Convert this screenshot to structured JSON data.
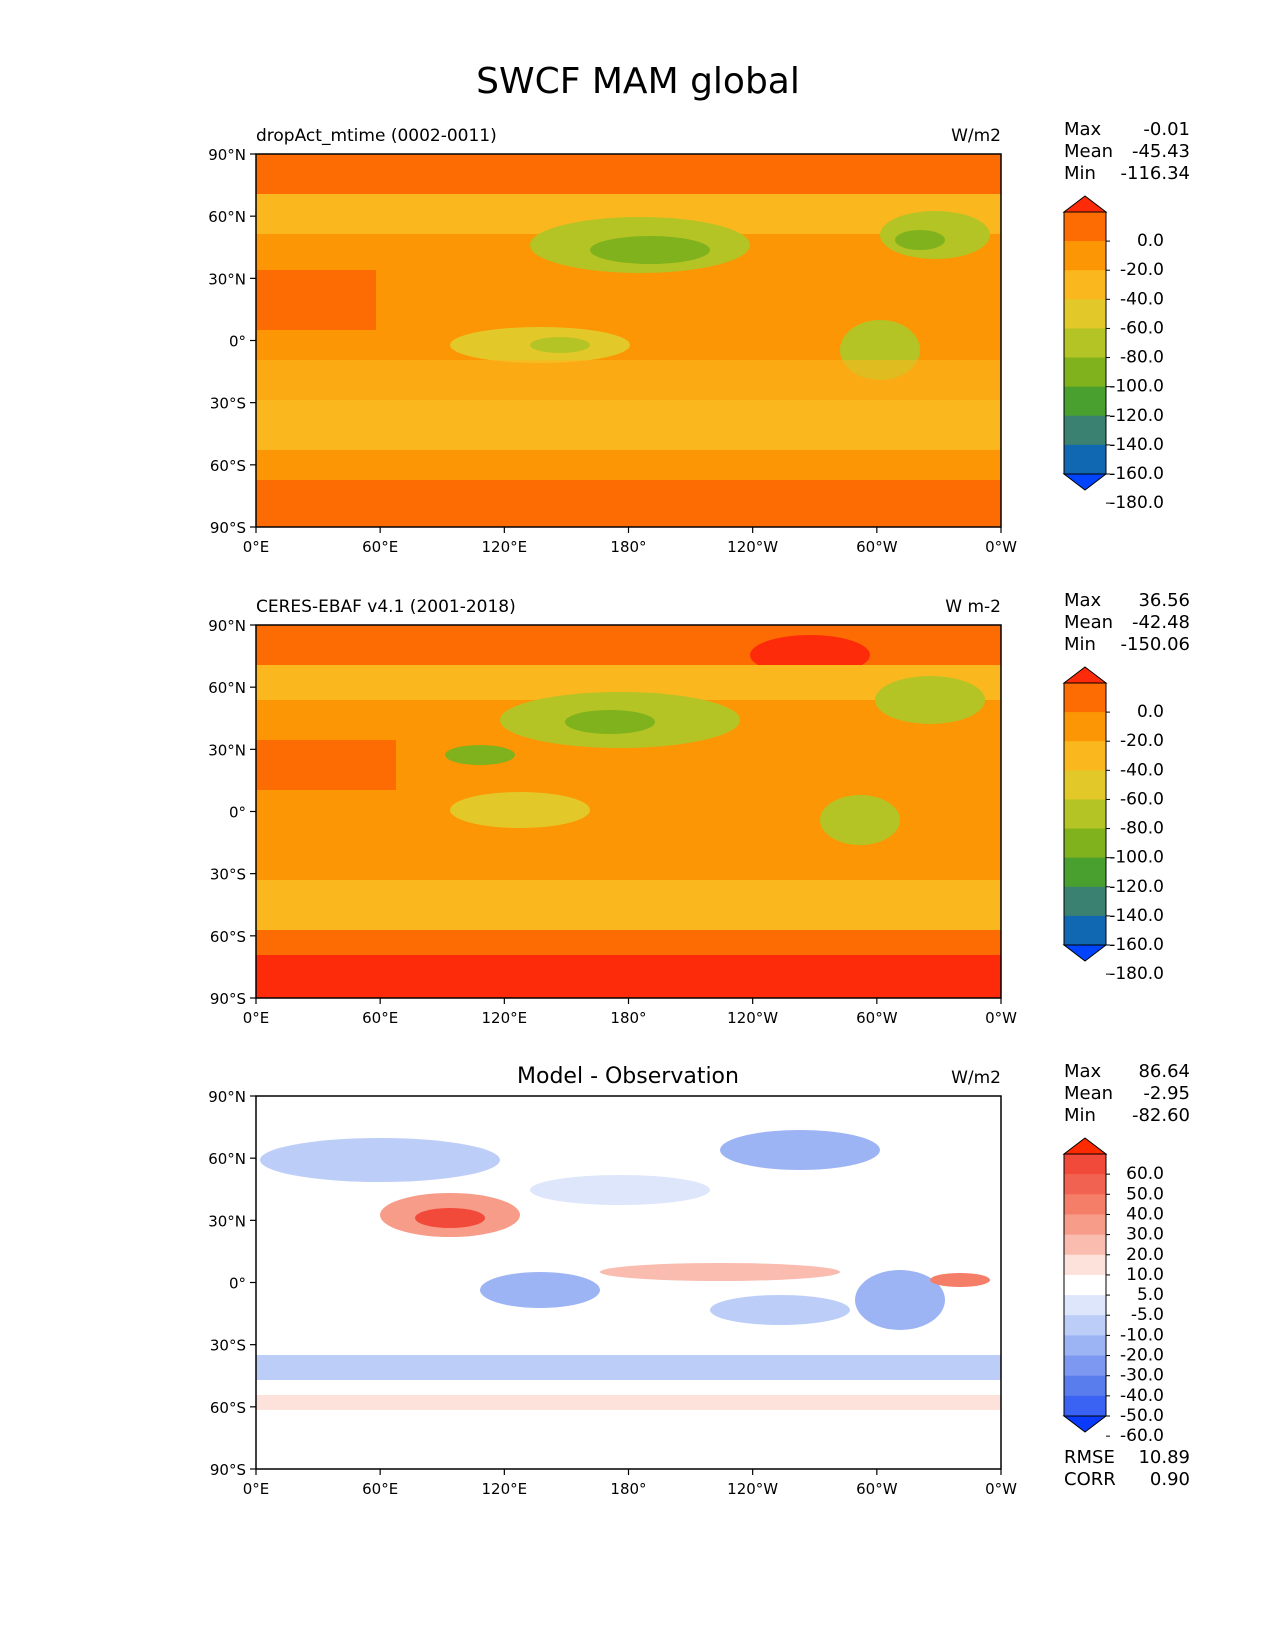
{
  "figure_title": "SWCF MAM global",
  "panels": [
    {
      "left_title": "dropAct_mtime (0002-0011)",
      "center_title": "",
      "units": "W/m2",
      "stats": [
        {
          "label": "Max",
          "value": "-0.01"
        },
        {
          "label": "Mean",
          "value": "-45.43"
        },
        {
          "label": "Min",
          "value": "-116.34"
        }
      ],
      "colorbar": {
        "labels": [
          "0.0",
          "-20.0",
          "-40.0",
          "-60.0",
          "-80.0",
          "-100.0",
          "-120.0",
          "-140.0",
          "-160.0",
          "-180.0"
        ],
        "colors": [
          "#fe2b0a",
          "#fd6c03",
          "#fd9605",
          "#fbb71e",
          "#e3c82a",
          "#b4c424",
          "#7fb21c",
          "#4aa02f",
          "#3a8171",
          "#1068b3",
          "#0044fe"
        ]
      }
    },
    {
      "left_title": "CERES-EBAF v4.1 (2001-2018)",
      "center_title": "",
      "units": "W m-2",
      "stats": [
        {
          "label": "Max",
          "value": "36.56"
        },
        {
          "label": "Mean",
          "value": "-42.48"
        },
        {
          "label": "Min",
          "value": "-150.06"
        }
      ],
      "colorbar": {
        "labels": [
          "0.0",
          "-20.0",
          "-40.0",
          "-60.0",
          "-80.0",
          "-100.0",
          "-120.0",
          "-140.0",
          "-160.0",
          "-180.0"
        ],
        "colors": [
          "#fe2b0a",
          "#fd6c03",
          "#fd9605",
          "#fbb71e",
          "#e3c82a",
          "#b4c424",
          "#7fb21c",
          "#4aa02f",
          "#3a8171",
          "#1068b3",
          "#0044fe"
        ]
      }
    },
    {
      "left_title": "",
      "center_title": "Model - Observation",
      "units": "W/m2",
      "stats": [
        {
          "label": "Max",
          "value": "86.64"
        },
        {
          "label": "Mean",
          "value": "-2.95"
        },
        {
          "label": "Min",
          "value": "-82.60"
        }
      ],
      "colorbar": {
        "labels": [
          "60.0",
          "50.0",
          "40.0",
          "30.0",
          "20.0",
          "10.0",
          "5.0",
          "-5.0",
          "-10.0",
          "-20.0",
          "-30.0",
          "-40.0",
          "-50.0",
          "-60.0"
        ],
        "colors": [
          "#fe2a00",
          "#f24a3a",
          "#f26250",
          "#f47e68",
          "#f79c89",
          "#fbbcb0",
          "#fde2dc",
          "#ffffff",
          "#dde6fb",
          "#bccdf8",
          "#9db4f4",
          "#7c98f0",
          "#5a7dee",
          "#3b63f3",
          "#0a3bfd"
        ]
      },
      "footer_stats": [
        {
          "label": "RMSE",
          "value": "10.89"
        },
        {
          "label": "CORR",
          "value": "0.90"
        }
      ]
    }
  ],
  "chart_data": [
    {
      "type": "heatmap",
      "title": "dropAct_mtime (0002-0011)",
      "units": "W/m2",
      "x_ticks": [
        "0°E",
        "60°E",
        "120°E",
        "180°",
        "120°W",
        "60°W",
        "0°W"
      ],
      "y_ticks": [
        "90°N",
        "60°N",
        "30°N",
        "0°",
        "30°S",
        "60°S",
        "90°S"
      ],
      "xlim": [
        0,
        360
      ],
      "ylim": [
        -90,
        90
      ],
      "levels": [
        0,
        -20,
        -40,
        -60,
        -80,
        -100,
        -120,
        -140,
        -160,
        -180
      ],
      "max": -0.01,
      "mean": -45.43,
      "min": -116.34
    },
    {
      "type": "heatmap",
      "title": "CERES-EBAF v4.1 (2001-2018)",
      "units": "W m-2",
      "x_ticks": [
        "0°E",
        "60°E",
        "120°E",
        "180°",
        "120°W",
        "60°W",
        "0°W"
      ],
      "y_ticks": [
        "90°N",
        "60°N",
        "30°N",
        "0°",
        "30°S",
        "60°S",
        "90°S"
      ],
      "xlim": [
        0,
        360
      ],
      "ylim": [
        -90,
        90
      ],
      "levels": [
        0,
        -20,
        -40,
        -60,
        -80,
        -100,
        -120,
        -140,
        -160,
        -180
      ],
      "max": 36.56,
      "mean": -42.48,
      "min": -150.06
    },
    {
      "type": "heatmap",
      "title": "Model - Observation",
      "units": "W/m2",
      "x_ticks": [
        "0°E",
        "60°E",
        "120°E",
        "180°",
        "120°W",
        "60°W",
        "0°W"
      ],
      "y_ticks": [
        "90°N",
        "60°N",
        "30°N",
        "0°",
        "30°S",
        "60°S",
        "90°S"
      ],
      "xlim": [
        0,
        360
      ],
      "ylim": [
        -90,
        90
      ],
      "levels": [
        60,
        50,
        40,
        30,
        20,
        10,
        5,
        -5,
        -10,
        -20,
        -30,
        -40,
        -50,
        -60
      ],
      "max": 86.64,
      "mean": -2.95,
      "min": -82.6,
      "rmse": 10.89,
      "corr": 0.9
    }
  ]
}
